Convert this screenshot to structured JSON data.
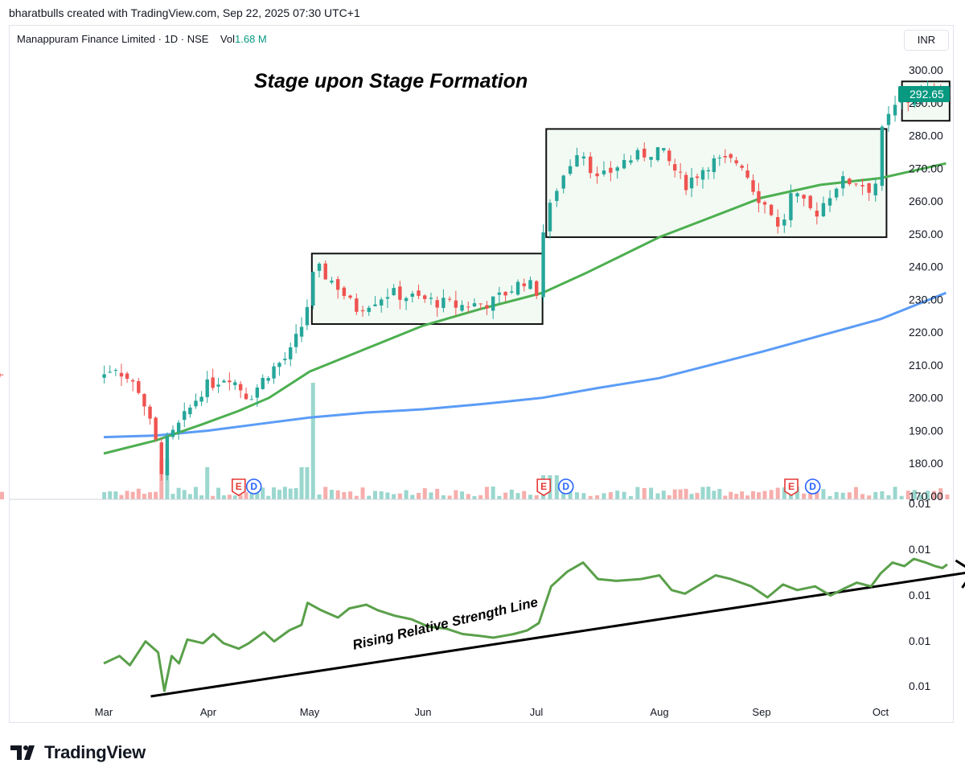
{
  "header": {
    "credit": "bharatbulls created with TradingView.com, Sep 22, 2025 07:30 UTC+1",
    "symbol": "Manappuram Finance Limited · 1D · NSE",
    "vol_label": "Vol",
    "vol_value": "1.68 M",
    "currency": "INR"
  },
  "annotations": {
    "title": "Stage upon Stage Formation",
    "rs_label": "Rising Relative Strength Line"
  },
  "events": [
    {
      "type": "E",
      "month_pos": 1.3
    },
    {
      "type": "D",
      "month_pos": 1.45
    },
    {
      "type": "E",
      "month_pos": 4.06
    },
    {
      "type": "D",
      "month_pos": 4.24
    },
    {
      "type": "E",
      "month_pos": 6.25
    },
    {
      "type": "D",
      "month_pos": 6.43
    }
  ],
  "colors": {
    "up": "#26a69a",
    "down": "#ef5350",
    "sma50": "#4caf50",
    "sma200": "#5b9cf6",
    "rs_line": "#5aa04a",
    "price_badge": "#089981",
    "base_fill": "#e8f5e9"
  },
  "brand": "TradingView",
  "chart_data": {
    "type": "candlestick",
    "x_axis": {
      "labels": [
        "Mar",
        "Apr",
        "May",
        "Jun",
        "Jul",
        "Aug",
        "Sep",
        "Oct"
      ]
    },
    "price_axis": {
      "ticks": [
        "300.00",
        "290.00",
        "280.00",
        "270.00",
        "260.00",
        "250.00",
        "240.00",
        "230.00",
        "220.00",
        "210.00",
        "200.00",
        "190.00",
        "180.00",
        "170.00"
      ],
      "range": [
        170,
        305
      ],
      "last_price": "292.65"
    },
    "rs_axis": {
      "ticks": [
        "0.01",
        "0.01",
        "0.01",
        "0.01",
        "0.01",
        "0.01"
      ]
    },
    "key_points": [
      {
        "t": 0.0,
        "p": 207
      },
      {
        "t": 0.1,
        "p": 210
      },
      {
        "t": 0.35,
        "p": 202
      },
      {
        "t": 0.5,
        "p": 186
      },
      {
        "t": 0.55,
        "p": 178
      },
      {
        "t": 0.6,
        "p": 186
      },
      {
        "t": 0.75,
        "p": 193
      },
      {
        "t": 0.95,
        "p": 203
      },
      {
        "t": 1.2,
        "p": 207
      },
      {
        "t": 1.4,
        "p": 200
      },
      {
        "t": 1.6,
        "p": 208
      },
      {
        "t": 1.8,
        "p": 213
      },
      {
        "t": 1.95,
        "p": 224
      },
      {
        "t": 2.05,
        "p": 240
      },
      {
        "t": 2.25,
        "p": 234
      },
      {
        "t": 2.4,
        "p": 227
      },
      {
        "t": 2.7,
        "p": 232
      },
      {
        "t": 3.0,
        "p": 230
      },
      {
        "t": 3.3,
        "p": 228
      },
      {
        "t": 3.6,
        "p": 229
      },
      {
        "t": 3.9,
        "p": 236
      },
      {
        "t": 4.0,
        "p": 232
      },
      {
        "t": 4.05,
        "p": 250
      },
      {
        "t": 4.15,
        "p": 263
      },
      {
        "t": 4.35,
        "p": 277
      },
      {
        "t": 4.5,
        "p": 266
      },
      {
        "t": 4.7,
        "p": 272
      },
      {
        "t": 5.0,
        "p": 276
      },
      {
        "t": 5.25,
        "p": 265
      },
      {
        "t": 5.5,
        "p": 272
      },
      {
        "t": 5.8,
        "p": 272
      },
      {
        "t": 5.95,
        "p": 262
      },
      {
        "t": 6.1,
        "p": 256
      },
      {
        "t": 6.15,
        "p": 250
      },
      {
        "t": 6.25,
        "p": 262
      },
      {
        "t": 6.45,
        "p": 256
      },
      {
        "t": 6.65,
        "p": 266
      },
      {
        "t": 6.8,
        "p": 266
      },
      {
        "t": 6.95,
        "p": 263
      },
      {
        "t": 7.0,
        "p": 280
      },
      {
        "t": 7.1,
        "p": 288
      },
      {
        "t": 7.3,
        "p": 292
      },
      {
        "t": 7.5,
        "p": 294
      },
      {
        "t": 7.55,
        "p": 292.65
      }
    ],
    "sma50": [
      {
        "t": 0.0,
        "p": 183
      },
      {
        "t": 0.5,
        "p": 187
      },
      {
        "t": 0.95,
        "p": 192
      },
      {
        "t": 1.3,
        "p": 196
      },
      {
        "t": 1.6,
        "p": 200
      },
      {
        "t": 2.0,
        "p": 208
      },
      {
        "t": 2.5,
        "p": 215
      },
      {
        "t": 3.0,
        "p": 222
      },
      {
        "t": 3.5,
        "p": 227
      },
      {
        "t": 4.05,
        "p": 232
      },
      {
        "t": 4.4,
        "p": 238
      },
      {
        "t": 5.0,
        "p": 249
      },
      {
        "t": 5.5,
        "p": 255
      },
      {
        "t": 6.0,
        "p": 261
      },
      {
        "t": 6.5,
        "p": 265
      },
      {
        "t": 7.0,
        "p": 267
      },
      {
        "t": 7.55,
        "p": 271.5
      }
    ],
    "sma200": [
      {
        "t": 0.0,
        "p": 188
      },
      {
        "t": 0.5,
        "p": 188.5
      },
      {
        "t": 1.0,
        "p": 190
      },
      {
        "t": 1.5,
        "p": 192
      },
      {
        "t": 2.0,
        "p": 194
      },
      {
        "t": 2.5,
        "p": 195.5
      },
      {
        "t": 3.0,
        "p": 196.5
      },
      {
        "t": 3.5,
        "p": 198
      },
      {
        "t": 4.05,
        "p": 200
      },
      {
        "t": 4.5,
        "p": 203
      },
      {
        "t": 5.0,
        "p": 206
      },
      {
        "t": 5.5,
        "p": 210
      },
      {
        "t": 6.0,
        "p": 214
      },
      {
        "t": 6.5,
        "p": 219
      },
      {
        "t": 7.0,
        "p": 224
      },
      {
        "t": 7.55,
        "p": 232
      }
    ],
    "bases": [
      {
        "t_start": 2.02,
        "t_end": 4.05,
        "low": 222.5,
        "high": 244
      },
      {
        "t_start": 4.08,
        "t_end": 7.05,
        "low": 249,
        "high": 282
      },
      {
        "t_start": 7.18,
        "t_end": 7.58,
        "low": 284.5,
        "high": 296.5
      }
    ],
    "rs_line": [
      {
        "t": 0.0,
        "v": 0.82
      },
      {
        "t": 0.15,
        "v": 0.78
      },
      {
        "t": 0.25,
        "v": 0.83
      },
      {
        "t": 0.4,
        "v": 0.7
      },
      {
        "t": 0.52,
        "v": 0.76
      },
      {
        "t": 0.58,
        "v": 0.97
      },
      {
        "t": 0.65,
        "v": 0.78
      },
      {
        "t": 0.72,
        "v": 0.82
      },
      {
        "t": 0.8,
        "v": 0.69
      },
      {
        "t": 0.95,
        "v": 0.71
      },
      {
        "t": 1.05,
        "v": 0.66
      },
      {
        "t": 1.15,
        "v": 0.71
      },
      {
        "t": 1.3,
        "v": 0.74
      },
      {
        "t": 1.4,
        "v": 0.71
      },
      {
        "t": 1.55,
        "v": 0.65
      },
      {
        "t": 1.65,
        "v": 0.7
      },
      {
        "t": 1.8,
        "v": 0.64
      },
      {
        "t": 1.92,
        "v": 0.61
      },
      {
        "t": 1.98,
        "v": 0.49
      },
      {
        "t": 2.1,
        "v": 0.53
      },
      {
        "t": 2.25,
        "v": 0.57
      },
      {
        "t": 2.35,
        "v": 0.52
      },
      {
        "t": 2.5,
        "v": 0.5
      },
      {
        "t": 2.6,
        "v": 0.53
      },
      {
        "t": 2.75,
        "v": 0.56
      },
      {
        "t": 2.9,
        "v": 0.58
      },
      {
        "t": 3.05,
        "v": 0.62
      },
      {
        "t": 3.2,
        "v": 0.63
      },
      {
        "t": 3.35,
        "v": 0.66
      },
      {
        "t": 3.5,
        "v": 0.67
      },
      {
        "t": 3.62,
        "v": 0.68
      },
      {
        "t": 3.8,
        "v": 0.66
      },
      {
        "t": 3.92,
        "v": 0.64
      },
      {
        "t": 4.02,
        "v": 0.6
      },
      {
        "t": 4.12,
        "v": 0.4
      },
      {
        "t": 4.25,
        "v": 0.32
      },
      {
        "t": 4.38,
        "v": 0.27
      },
      {
        "t": 4.5,
        "v": 0.36
      },
      {
        "t": 4.65,
        "v": 0.37
      },
      {
        "t": 4.85,
        "v": 0.36
      },
      {
        "t": 5.0,
        "v": 0.34
      },
      {
        "t": 5.12,
        "v": 0.42
      },
      {
        "t": 5.25,
        "v": 0.44
      },
      {
        "t": 5.4,
        "v": 0.39
      },
      {
        "t": 5.55,
        "v": 0.34
      },
      {
        "t": 5.7,
        "v": 0.36
      },
      {
        "t": 5.9,
        "v": 0.4
      },
      {
        "t": 6.05,
        "v": 0.46
      },
      {
        "t": 6.18,
        "v": 0.39
      },
      {
        "t": 6.3,
        "v": 0.42
      },
      {
        "t": 6.45,
        "v": 0.4
      },
      {
        "t": 6.58,
        "v": 0.45
      },
      {
        "t": 6.7,
        "v": 0.41
      },
      {
        "t": 6.8,
        "v": 0.38
      },
      {
        "t": 6.92,
        "v": 0.4
      },
      {
        "t": 7.0,
        "v": 0.33
      },
      {
        "t": 7.1,
        "v": 0.27
      },
      {
        "t": 7.2,
        "v": 0.29
      },
      {
        "t": 7.28,
        "v": 0.25
      },
      {
        "t": 7.38,
        "v": 0.27
      },
      {
        "t": 7.46,
        "v": 0.29
      },
      {
        "t": 7.52,
        "v": 0.3
      },
      {
        "t": 7.56,
        "v": 0.28
      }
    ],
    "rs_trendline": [
      {
        "t": 0.45,
        "v": 1.0
      },
      {
        "t": 7.78,
        "v": 0.32
      }
    ]
  }
}
